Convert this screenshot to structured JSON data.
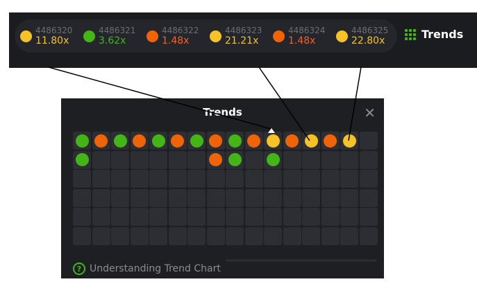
{
  "colors": {
    "green": "#44b517",
    "orange": "#ef6406",
    "yellow": "#f5c326"
  },
  "history": [
    {
      "id": "4486320",
      "value": "11.80x",
      "color": "yellow"
    },
    {
      "id": "4486321",
      "value": "3.62x",
      "color": "green"
    },
    {
      "id": "4486322",
      "value": "1.48x",
      "color": "orange"
    },
    {
      "id": "4486323",
      "value": "21.21x",
      "color": "yellow"
    },
    {
      "id": "4486324",
      "value": "1.48x",
      "color": "orange"
    },
    {
      "id": "4486325",
      "value": "22.80x",
      "color": "yellow"
    }
  ],
  "trends_button": {
    "label": "Trends",
    "icon": "grid-dots-icon"
  },
  "modal": {
    "title": "Trends",
    "close_icon": "close-icon",
    "grid": {
      "columns": 16,
      "rows": 6,
      "cells": [
        [
          "green",
          "orange",
          "green",
          "orange",
          "green",
          "orange",
          "green",
          "orange",
          "green",
          "orange",
          "yellow",
          "orange",
          "yellow",
          "orange",
          "yellow",
          null
        ],
        [
          "green",
          null,
          null,
          null,
          null,
          null,
          null,
          "orange",
          "green",
          null,
          "green",
          null,
          null,
          null,
          null,
          null
        ]
      ]
    },
    "help_link": "Understanding Trend Chart"
  }
}
